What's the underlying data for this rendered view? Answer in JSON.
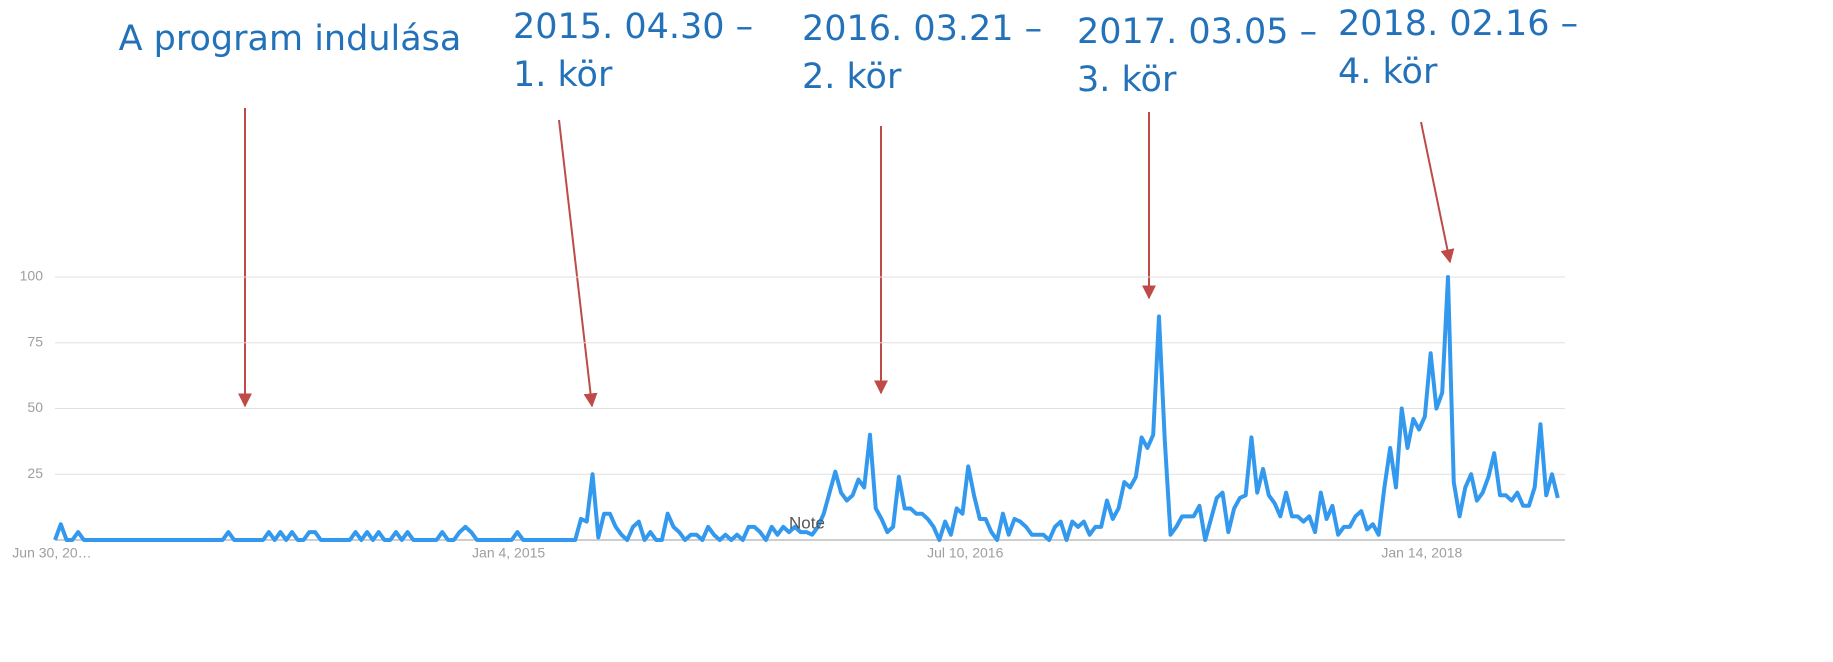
{
  "chart_data": {
    "type": "line",
    "categories": [
      "Jun 30, 20…",
      null,
      null,
      null,
      null,
      null,
      null,
      null,
      null,
      null,
      null,
      null,
      null,
      null,
      null,
      null,
      null,
      null,
      null,
      null,
      null,
      null,
      null,
      null,
      null,
      null,
      null,
      null,
      null,
      null,
      null,
      null,
      null,
      null,
      null,
      null,
      null,
      null,
      null,
      null,
      null,
      null,
      null,
      null,
      null,
      null,
      null,
      null,
      null,
      null,
      null,
      null,
      null,
      null,
      null,
      null,
      null,
      null,
      null,
      null,
      null,
      null,
      null,
      null,
      null,
      null,
      null,
      null,
      null,
      null,
      null,
      null,
      null,
      null,
      null,
      null,
      null,
      null,
      null,
      "Jan 4, 2015",
      null,
      null,
      null,
      null,
      null,
      null,
      null,
      null,
      null,
      null,
      null,
      null,
      null,
      null,
      null,
      null,
      null,
      null,
      null,
      null,
      null,
      null,
      null,
      null,
      null,
      null,
      null,
      null,
      null,
      null,
      null,
      null,
      null,
      null,
      null,
      null,
      null,
      null,
      null,
      null,
      null,
      null,
      null,
      null,
      null,
      null,
      null,
      null,
      null,
      null,
      null,
      null,
      null,
      null,
      null,
      null,
      null,
      null,
      null,
      null,
      null,
      null,
      null,
      null,
      null,
      null,
      null,
      null,
      null,
      null,
      null,
      null,
      null,
      null,
      null,
      null,
      null,
      null,
      "Jul 10, 2016",
      null,
      null,
      null,
      null,
      null,
      null,
      null,
      null,
      null,
      null,
      null,
      null,
      null,
      null,
      null,
      null,
      null,
      null,
      null,
      null,
      null,
      null,
      null,
      null,
      null,
      null,
      null,
      null,
      null,
      null,
      null,
      null,
      null,
      null,
      null,
      null,
      null,
      null,
      null,
      null,
      null,
      null,
      null,
      null,
      null,
      null,
      null,
      null,
      null,
      null,
      null,
      null,
      null,
      null,
      null,
      null,
      null,
      null,
      null,
      null,
      null,
      null,
      null,
      null,
      null,
      null,
      null,
      null,
      null,
      null,
      null,
      null,
      null,
      null,
      null,
      null,
      null,
      null,
      "Jan 14, 2018",
      null,
      null,
      null,
      null,
      null,
      null,
      null,
      null,
      null,
      null,
      null,
      null,
      null,
      null,
      null,
      null,
      null,
      null,
      null,
      null,
      null,
      null,
      null
    ],
    "series": [
      {
        "color": "#3399ee",
        "values": [
          0,
          6,
          0,
          0,
          3,
          0,
          0,
          0,
          0,
          0,
          0,
          0,
          0,
          0,
          0,
          0,
          0,
          0,
          0,
          0,
          0,
          0,
          0,
          0,
          0,
          0,
          0,
          0,
          0,
          0,
          3,
          0,
          0,
          0,
          0,
          0,
          0,
          3,
          0,
          3,
          0,
          3,
          0,
          0,
          3,
          3,
          0,
          0,
          0,
          0,
          0,
          0,
          3,
          0,
          3,
          0,
          3,
          0,
          0,
          3,
          0,
          3,
          0,
          0,
          0,
          0,
          0,
          3,
          0,
          0,
          3,
          5,
          3,
          0,
          0,
          0,
          0,
          0,
          0,
          0,
          3,
          0,
          0,
          0,
          0,
          0,
          0,
          0,
          0,
          0,
          0,
          8,
          7,
          25,
          1,
          10,
          10,
          5,
          2,
          0,
          5,
          7,
          0,
          3,
          0,
          0,
          10,
          5,
          3,
          0,
          2,
          2,
          0,
          5,
          2,
          0,
          2,
          0,
          2,
          0,
          5,
          5,
          3,
          0,
          5,
          2,
          5,
          3,
          5,
          3,
          3,
          2,
          5,
          10,
          18,
          26,
          18,
          15,
          17,
          23,
          20,
          40,
          12,
          8,
          3,
          5,
          24,
          12,
          12,
          10,
          10,
          8,
          5,
          0,
          7,
          2,
          12,
          10,
          28,
          17,
          8,
          8,
          3,
          0,
          10,
          2,
          8,
          7,
          5,
          2,
          2,
          2,
          0,
          5,
          7,
          0,
          7,
          5,
          7,
          2,
          5,
          5,
          15,
          8,
          12,
          22,
          20,
          24,
          39,
          35,
          40,
          85,
          38,
          2,
          5,
          9,
          9,
          9,
          13,
          0,
          8,
          16,
          18,
          3,
          12,
          16,
          17,
          39,
          18,
          27,
          17,
          14,
          9,
          18,
          9,
          9,
          7,
          9,
          3,
          18,
          8,
          13,
          2,
          5,
          5,
          9,
          11,
          4,
          6,
          2,
          20,
          35,
          20,
          50,
          35,
          46,
          42,
          47,
          71,
          50,
          56,
          100,
          22,
          9,
          20,
          25,
          15,
          18,
          24,
          33,
          17,
          17,
          15,
          18,
          13,
          13,
          20,
          44,
          17,
          25,
          16
        ]
      }
    ],
    "ylim": [
      0,
      100
    ],
    "yticks": [
      25,
      50,
      75,
      100
    ],
    "grid": true,
    "note": "Note",
    "annotations": [
      [
        "A program indulása"
      ],
      [
        "2015. 04.30 –",
        "1. kör"
      ],
      [
        "2016. 03.21 –",
        "2. kör"
      ],
      [
        "2017. 03.05 –",
        "3. kör"
      ],
      [
        "2018. 02.16 –",
        "4. kör"
      ]
    ]
  }
}
